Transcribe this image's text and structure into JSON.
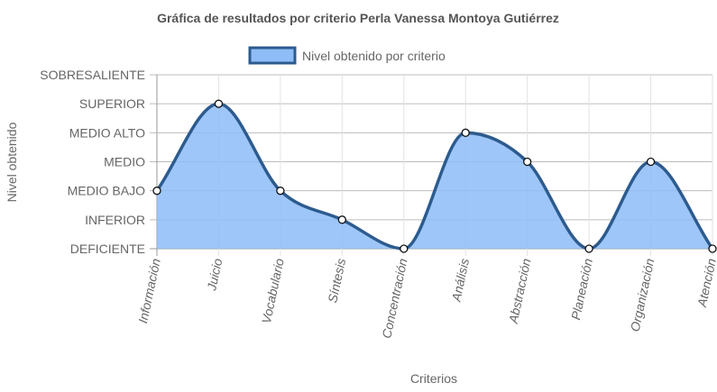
{
  "chart_data": {
    "type": "area",
    "title": "Gráfica de resultados por criterio Perla Vanessa Montoya Gutiérrez",
    "xlabel": "Criterios",
    "ylabel": "Nivel obtenido",
    "legend_position": "top",
    "grid": true,
    "y_levels": [
      "DEFICIENTE",
      "INFERIOR",
      "MEDIO BAJO",
      "MEDIO",
      "MEDIO ALTO",
      "SUPERIOR",
      "SOBRESALIENTE"
    ],
    "ylim": [
      0,
      6
    ],
    "categories": [
      "Información",
      "Juicio",
      "Vocabulario",
      "Síntesis",
      "Concentración",
      "Análisis",
      "Abstracción",
      "Planeación",
      "Organización",
      "Atención"
    ],
    "series": [
      {
        "name": "Nivel obtenido por criterio",
        "values": [
          2,
          5,
          2,
          1,
          0,
          4,
          3,
          0,
          3,
          0
        ],
        "fill": "#8dbcf7",
        "stroke": "#2d5b8e"
      }
    ]
  }
}
